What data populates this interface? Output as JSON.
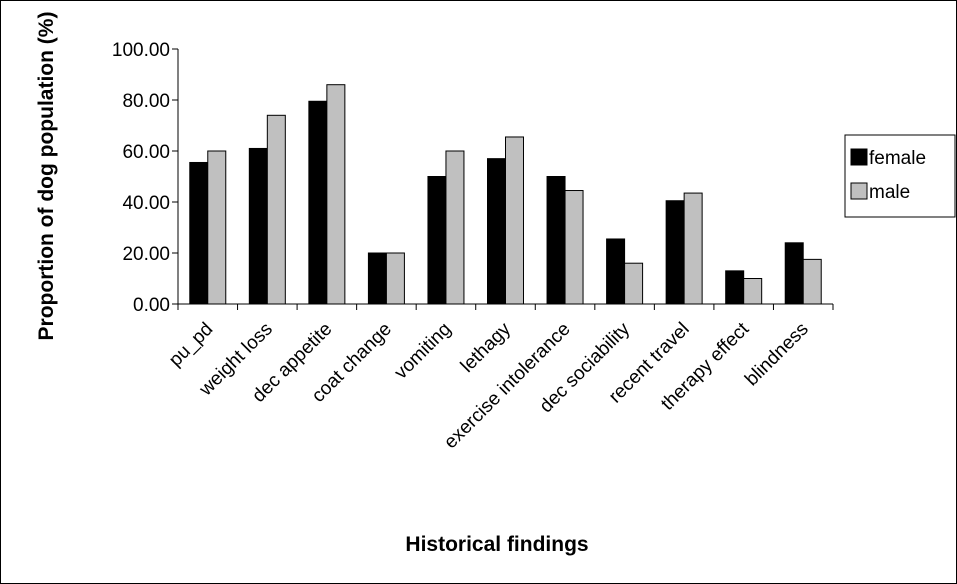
{
  "chart_data": {
    "type": "bar",
    "title": "",
    "xlabel": "Historical findings",
    "ylabel": "Proportion of dog population (%)",
    "ylim": [
      0,
      100
    ],
    "yticks": [
      "0.00",
      "20.00",
      "40.00",
      "60.00",
      "80.00",
      "100.00"
    ],
    "grid": false,
    "legend_position": "right",
    "categories": [
      "pu_pd",
      "weight loss",
      "dec appetite",
      "coat change",
      "vomiting",
      "lethagy",
      "exercise intolerance",
      "dec sociability",
      "recent travel",
      "therapy effect",
      "blindness"
    ],
    "series": [
      {
        "name": "female",
        "color": "#000000",
        "values": [
          55.5,
          61.0,
          79.5,
          20.0,
          50.0,
          57.0,
          50.0,
          25.5,
          40.5,
          13.0,
          24.0
        ]
      },
      {
        "name": "male",
        "color": "#c0c0c0",
        "values": [
          60.0,
          74.0,
          86.0,
          20.0,
          60.0,
          65.5,
          44.5,
          16.0,
          43.5,
          10.0,
          17.5
        ]
      }
    ]
  }
}
